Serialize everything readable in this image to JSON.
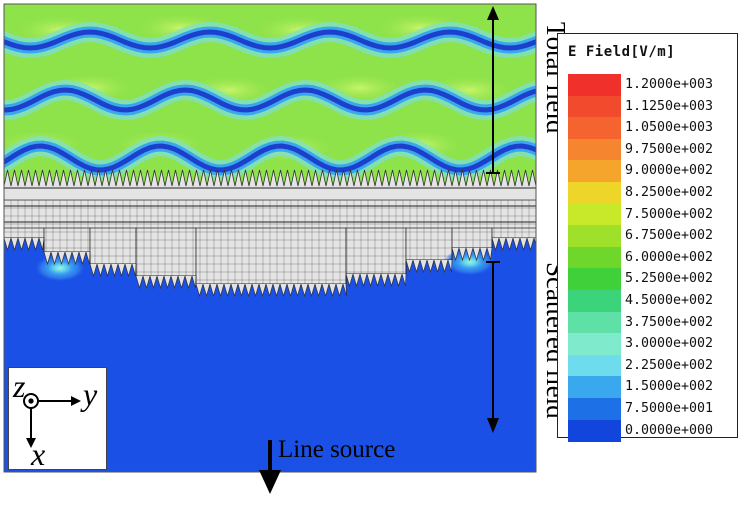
{
  "legend": {
    "title": "E Field[V/m]",
    "entries": [
      {
        "label": "1.2000e+003",
        "color": "#f0302a"
      },
      {
        "label": "1.1250e+003",
        "color": "#f24a2c"
      },
      {
        "label": "1.0500e+003",
        "color": "#f5642e"
      },
      {
        "label": "9.7500e+002",
        "color": "#f5852e"
      },
      {
        "label": "9.0000e+002",
        "color": "#f6a52c"
      },
      {
        "label": "8.2500e+002",
        "color": "#eed52a"
      },
      {
        "label": "7.5000e+002",
        "color": "#c8e82a"
      },
      {
        "label": "6.7500e+002",
        "color": "#9ee02a"
      },
      {
        "label": "6.0000e+002",
        "color": "#6fd62c"
      },
      {
        "label": "5.2500e+002",
        "color": "#3fd03a"
      },
      {
        "label": "4.5000e+002",
        "color": "#3cd47a"
      },
      {
        "label": "3.7500e+002",
        "color": "#5ee0a6"
      },
      {
        "label": "3.0000e+002",
        "color": "#80eacc"
      },
      {
        "label": "2.2500e+002",
        "color": "#6edcec"
      },
      {
        "label": "1.5000e+002",
        "color": "#3aa8ec"
      },
      {
        "label": "7.5000e+001",
        "color": "#1e70e6"
      },
      {
        "label": "0.0000e+000",
        "color": "#1245dc"
      }
    ]
  },
  "annotations": {
    "total_field": "Total field",
    "scattered_field": "Scattered field",
    "line_source": "Line source"
  },
  "axes": {
    "z": "z",
    "y": "y",
    "x": "x"
  },
  "colors": {
    "total_field_bg": "#8ee24a",
    "total_field_light": "#aef25c",
    "band_dark": "#1c3fcc",
    "band_mid": "#3aa6ee",
    "band_light": "#7fe0c8",
    "scattered_bg": "#1a50e6",
    "scattered_pocket": "#2f7ef0",
    "scattered_ring": "#4cc4f0",
    "scattered_core": "#8ae8c8",
    "metasurface_bg": "#e4e4e4",
    "metasurface_line": "#333333"
  }
}
